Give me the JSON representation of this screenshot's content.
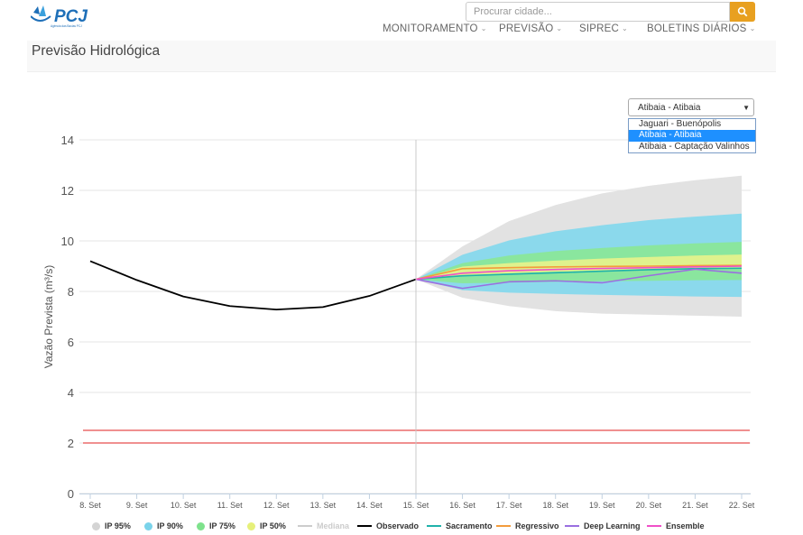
{
  "header": {
    "search_placeholder": "Procurar cidade...",
    "nav": [
      {
        "label": "MONITORAMENTO"
      },
      {
        "label": "PREVISÃO"
      },
      {
        "label": "SIPREC"
      },
      {
        "label": "BOLETINS DIÁRIOS"
      }
    ]
  },
  "page": {
    "title": "Previsão Hidrológica"
  },
  "station_select": {
    "selected": "Atibaia - Atibaia",
    "options": [
      "Jaguari - Buenópolis",
      "Atibaia - Atibaia",
      "Atibaia - Captação Valinhos"
    ]
  },
  "colors": {
    "accent": "#e8a020",
    "ip95": "#e0e0e0",
    "ip90": "#86d8ec",
    "ip75": "#8ae79a",
    "ip50": "#e4f28c",
    "observado": "#000000",
    "sacramento": "#20b2aa",
    "regressivo": "#f39c3c",
    "deep_learning": "#9a6fe0",
    "ensemble": "#f050c8",
    "threshold": "#e02020"
  },
  "chart_data": {
    "type": "line",
    "xlabel": "",
    "ylabel": "Vazão Prevista (m³/s)",
    "ylim": [
      0,
      14
    ],
    "yticks": [
      "0",
      "2",
      "4",
      "6",
      "8",
      "10",
      "12",
      "14"
    ],
    "categories": [
      "8. Set",
      "9. Set",
      "10. Set",
      "11. Set",
      "12. Set",
      "13. Set",
      "14. Set",
      "15. Set",
      "16. Set",
      "17. Set",
      "18. Set",
      "19. Set",
      "20. Set",
      "21. Set",
      "22. Set"
    ],
    "grid": true,
    "forecast_start": "15. Set",
    "series": [
      {
        "name": "Observado",
        "x": [
          "8. Set",
          "9. Set",
          "10. Set",
          "11. Set",
          "12. Set",
          "13. Set",
          "14. Set",
          "15. Set"
        ],
        "values": [
          9.2,
          8.45,
          7.8,
          7.42,
          7.28,
          7.38,
          7.82,
          8.48
        ]
      },
      {
        "name": "Sacramento",
        "x": [
          "15. Set",
          "16. Set",
          "17. Set",
          "18. Set",
          "19. Set",
          "20. Set",
          "21. Set",
          "22. Set"
        ],
        "values": [
          8.48,
          8.62,
          8.68,
          8.74,
          8.8,
          8.86,
          8.9,
          8.92
        ]
      },
      {
        "name": "Regressivo",
        "x": [
          "15. Set",
          "16. Set",
          "17. Set",
          "18. Set",
          "19. Set",
          "20. Set",
          "21. Set",
          "22. Set"
        ],
        "values": [
          8.48,
          8.9,
          8.94,
          8.97,
          8.99,
          9.0,
          9.02,
          9.03
        ]
      },
      {
        "name": "Deep Learning",
        "x": [
          "15. Set",
          "16. Set",
          "17. Set",
          "18. Set",
          "19. Set",
          "20. Set",
          "21. Set",
          "22. Set"
        ],
        "values": [
          8.48,
          8.12,
          8.38,
          8.42,
          8.34,
          8.62,
          8.88,
          8.72
        ]
      },
      {
        "name": "Ensemble",
        "x": [
          "15. Set",
          "16. Set",
          "17. Set",
          "18. Set",
          "19. Set",
          "20. Set",
          "21. Set",
          "22. Set"
        ],
        "values": [
          8.48,
          8.72,
          8.82,
          8.87,
          8.91,
          8.94,
          8.97,
          9.0
        ]
      }
    ],
    "bands": [
      {
        "name": "IP 95%",
        "x": [
          "15. Set",
          "16. Set",
          "17. Set",
          "18. Set",
          "19. Set",
          "20. Set",
          "21. Set",
          "22. Set"
        ],
        "low": [
          8.48,
          7.75,
          7.42,
          7.22,
          7.12,
          7.08,
          7.04,
          7.0
        ],
        "high": [
          8.48,
          9.78,
          10.78,
          11.42,
          11.88,
          12.18,
          12.4,
          12.58
        ]
      },
      {
        "name": "IP 90%",
        "x": [
          "15. Set",
          "16. Set",
          "17. Set",
          "18. Set",
          "19. Set",
          "20. Set",
          "21. Set",
          "22. Set"
        ],
        "low": [
          8.48,
          8.05,
          7.95,
          7.9,
          7.86,
          7.83,
          7.8,
          7.78
        ],
        "high": [
          8.48,
          9.45,
          10.02,
          10.38,
          10.62,
          10.82,
          10.96,
          11.08
        ]
      },
      {
        "name": "IP 75%",
        "x": [
          "15. Set",
          "16. Set",
          "17. Set",
          "18. Set",
          "19. Set",
          "20. Set",
          "21. Set",
          "22. Set"
        ],
        "low": [
          8.48,
          8.32,
          8.35,
          8.38,
          8.4,
          8.42,
          8.44,
          8.45
        ],
        "high": [
          8.48,
          9.12,
          9.42,
          9.6,
          9.72,
          9.82,
          9.9,
          9.96
        ]
      },
      {
        "name": "IP 50%",
        "x": [
          "15. Set",
          "16. Set",
          "17. Set",
          "18. Set",
          "19. Set",
          "20. Set",
          "21. Set",
          "22. Set"
        ],
        "low": [
          8.48,
          8.62,
          8.72,
          8.78,
          8.82,
          8.86,
          8.88,
          8.9
        ],
        "high": [
          8.48,
          8.98,
          9.12,
          9.22,
          9.3,
          9.36,
          9.42,
          9.46
        ]
      }
    ],
    "thresholds": [
      2.5,
      2.0
    ],
    "legend": {
      "position": "bottom",
      "items": [
        {
          "label": "IP 95%",
          "kind": "dot",
          "color": "#d4d4d4",
          "disabled": false
        },
        {
          "label": "IP 90%",
          "kind": "dot",
          "color": "#7ad3ea",
          "disabled": false
        },
        {
          "label": "IP 75%",
          "kind": "dot",
          "color": "#7ee28c",
          "disabled": false
        },
        {
          "label": "IP 50%",
          "kind": "dot",
          "color": "#e6f07a",
          "disabled": false
        },
        {
          "label": "Mediana",
          "kind": "line",
          "color": "#cccccc",
          "disabled": true
        },
        {
          "label": "Observado",
          "kind": "line",
          "color": "#000000",
          "disabled": false
        },
        {
          "label": "Sacramento",
          "kind": "line",
          "color": "#20b2aa",
          "disabled": false
        },
        {
          "label": "Regressivo",
          "kind": "line",
          "color": "#f39c3c",
          "disabled": false
        },
        {
          "label": "Deep Learning",
          "kind": "line",
          "color": "#9a6fe0",
          "disabled": false
        },
        {
          "label": "Ensemble",
          "kind": "line",
          "color": "#f050c8",
          "disabled": false
        }
      ]
    }
  }
}
